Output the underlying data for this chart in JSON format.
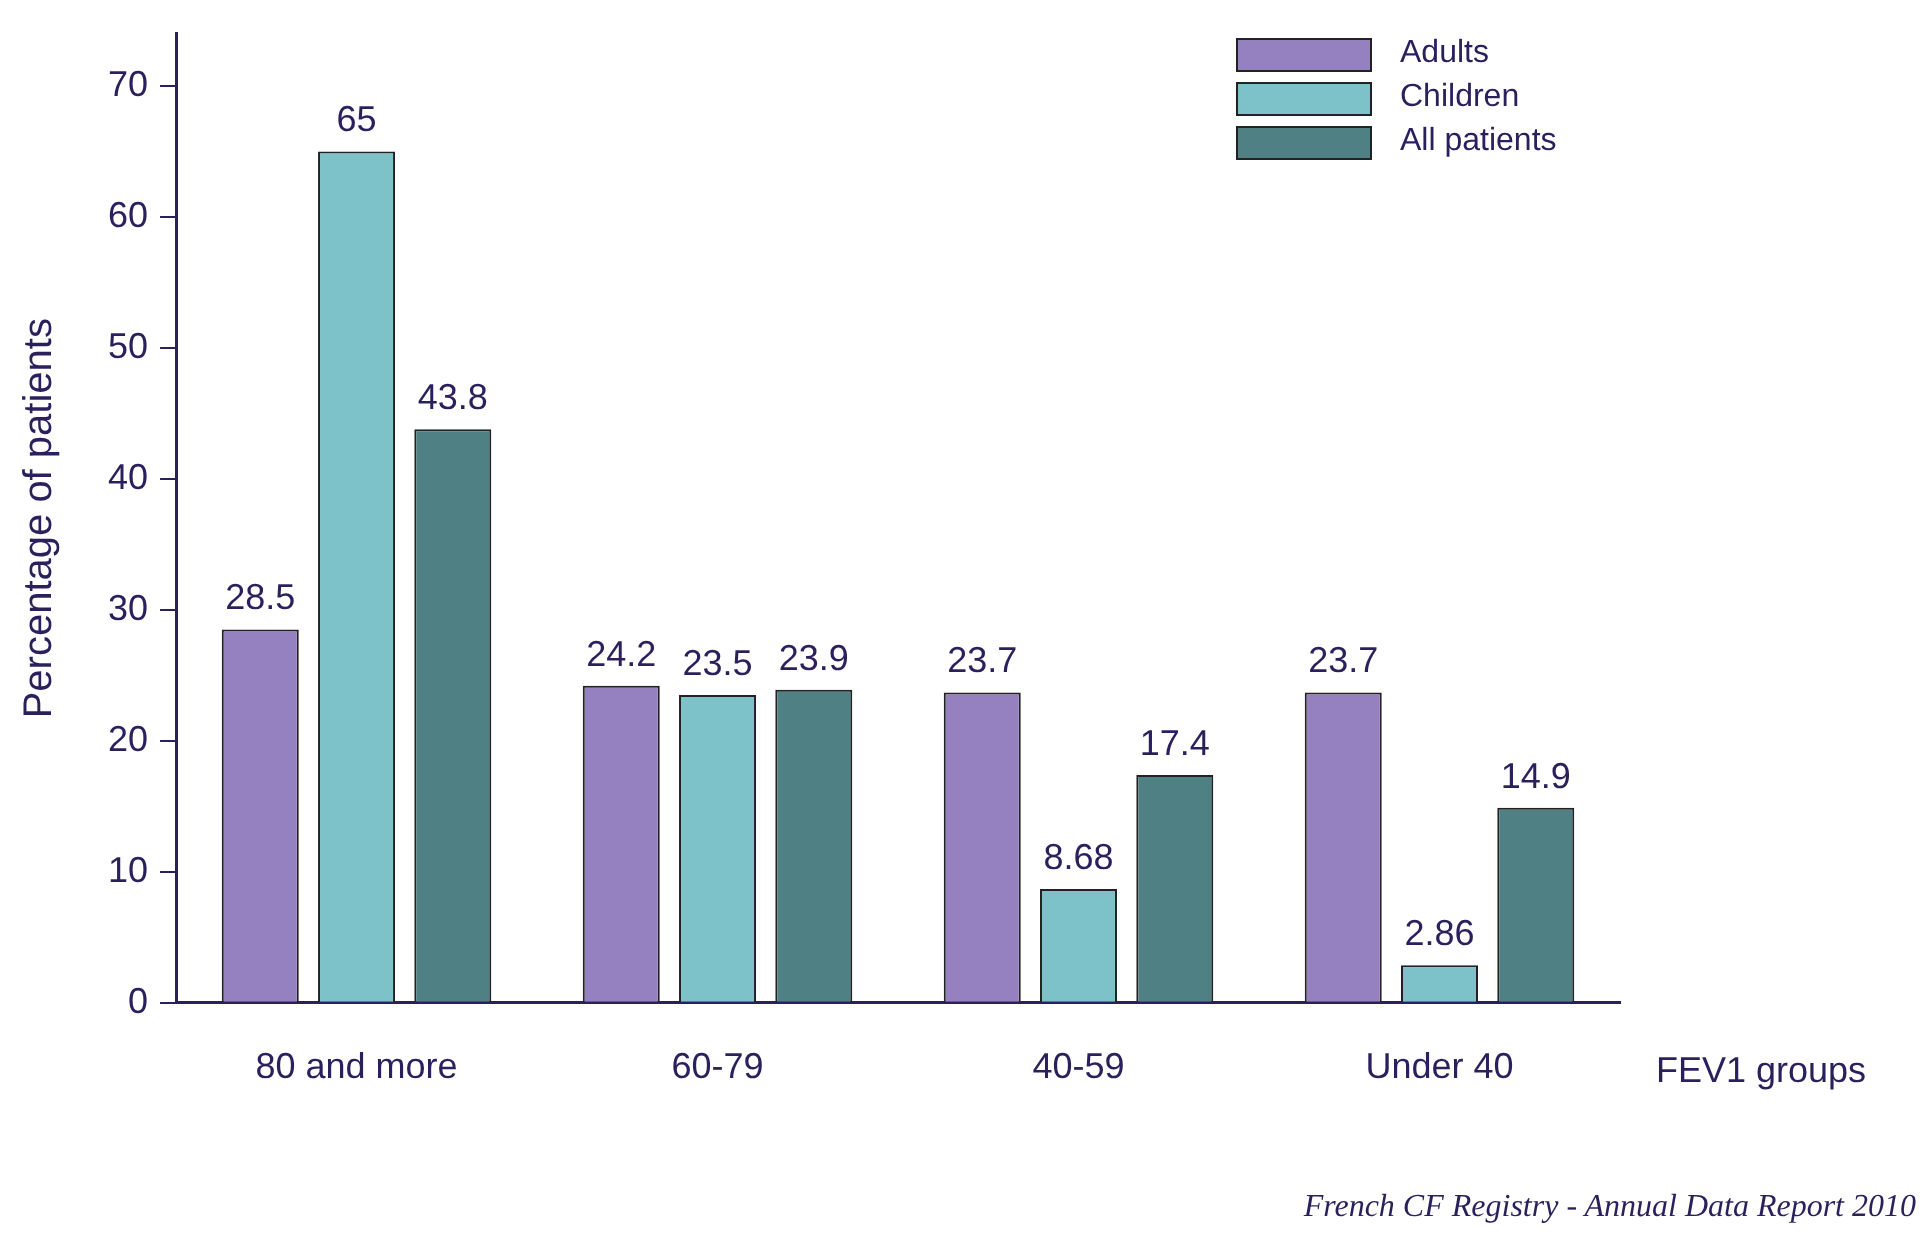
{
  "chart_data": {
    "type": "bar",
    "ylabel": "Percentage of patients",
    "xlabel": "FEV1 groups",
    "categories": [
      "80 and more",
      "60-79",
      "40-59",
      "Under 40"
    ],
    "series": [
      {
        "name": "Adults",
        "color": "#9580c0",
        "values": [
          28.5,
          24.2,
          23.7,
          23.7
        ]
      },
      {
        "name": "Children",
        "color": "#7cc2c8",
        "values": [
          65,
          23.5,
          8.68,
          2.86
        ]
      },
      {
        "name": "All patients",
        "color": "#4f8083",
        "values": [
          43.8,
          23.9,
          17.4,
          14.9
        ]
      }
    ],
    "ylim": [
      0,
      74
    ],
    "yticks": [
      0,
      10,
      20,
      30,
      40,
      50,
      60,
      70
    ],
    "grid": false,
    "legend": "top right",
    "data_labels": true,
    "annotations": [
      "French CF Registry - Annual Data Report 2010"
    ]
  }
}
